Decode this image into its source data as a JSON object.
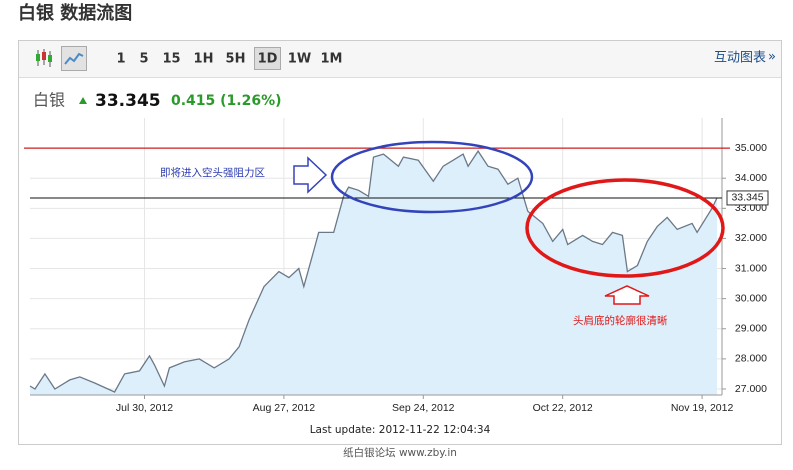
{
  "header": {
    "title": "白银 数据流图"
  },
  "toolbar": {
    "buttons": [
      "1",
      "5",
      "15",
      "1H",
      "5H",
      "1D",
      "1W",
      "1M"
    ],
    "active_index": 5,
    "link": "互动图表",
    "link_arrow": "»"
  },
  "quote": {
    "name": "白银",
    "price": 33.345,
    "change": "0.415 (1.26%)"
  },
  "chart_data": {
    "type": "area",
    "color": "#6b7887",
    "fill": "#ddeffb",
    "x": [
      "2012-07-07",
      "2012-07-08",
      "2012-07-10",
      "2012-07-12",
      "2012-07-15",
      "2012-07-17",
      "2012-07-20",
      "2012-07-24",
      "2012-07-26",
      "2012-07-29",
      "2012-07-31",
      "2012-08-01",
      "2012-08-03",
      "2012-08-04",
      "2012-08-07",
      "2012-08-10",
      "2012-08-13",
      "2012-08-16",
      "2012-08-18",
      "2012-08-20",
      "2012-08-23",
      "2012-08-26",
      "2012-08-28",
      "2012-08-30",
      "2012-08-31",
      "2012-09-02",
      "2012-09-03",
      "2012-09-06",
      "2012-09-08",
      "2012-09-09",
      "2012-09-11",
      "2012-09-13",
      "2012-09-14",
      "2012-09-16",
      "2012-09-19",
      "2012-09-20",
      "2012-09-23",
      "2012-09-26",
      "2012-09-28",
      "2012-09-30",
      "2012-10-02",
      "2012-10-03",
      "2012-10-05",
      "2012-10-07",
      "2012-10-09",
      "2012-10-11",
      "2012-10-13",
      "2012-10-15",
      "2012-10-18",
      "2012-10-20",
      "2012-10-22",
      "2012-10-23",
      "2012-10-26",
      "2012-10-28",
      "2012-10-30",
      "2012-11-01",
      "2012-11-03",
      "2012-11-04",
      "2012-11-06",
      "2012-11-08",
      "2012-11-10",
      "2012-11-12",
      "2012-11-14",
      "2012-11-17",
      "2012-11-18",
      "2012-11-21",
      "2012-11-22"
    ],
    "values": [
      27.1,
      27.0,
      27.5,
      27.0,
      27.3,
      27.4,
      27.2,
      26.9,
      27.5,
      27.6,
      28.1,
      27.8,
      27.1,
      27.7,
      27.9,
      28.0,
      27.7,
      28.0,
      28.4,
      29.3,
      30.4,
      30.9,
      30.7,
      31.0,
      30.4,
      31.6,
      32.2,
      32.2,
      33.4,
      33.7,
      33.6,
      33.4,
      34.7,
      34.8,
      34.4,
      34.7,
      34.6,
      33.9,
      34.4,
      34.6,
      34.8,
      34.4,
      34.9,
      34.4,
      34.3,
      33.8,
      34.0,
      32.9,
      32.5,
      31.9,
      32.3,
      31.8,
      32.1,
      31.9,
      31.8,
      32.2,
      32.1,
      30.9,
      31.1,
      31.9,
      32.4,
      32.7,
      32.3,
      32.5,
      32.2,
      33.0,
      33.345
    ],
    "xlim": [
      "2012-07-07",
      "2012-11-23"
    ],
    "xticks": [
      {
        "value": "2012-07-30",
        "label": "Jul 30, 2012"
      },
      {
        "value": "2012-08-27",
        "label": "Aug 27, 2012"
      },
      {
        "value": "2012-09-24",
        "label": "Sep 24, 2012"
      },
      {
        "value": "2012-10-22",
        "label": "Oct 22, 2012"
      },
      {
        "value": "2012-11-19",
        "label": "Nov 19, 2012"
      }
    ],
    "ylim": [
      26.8,
      36
    ],
    "yticks": [
      {
        "value": 27,
        "label": "27.000"
      },
      {
        "value": 28,
        "label": "28.000"
      },
      {
        "value": 29,
        "label": "29.000"
      },
      {
        "value": 30,
        "label": "30.000"
      },
      {
        "value": 31,
        "label": "31.000"
      },
      {
        "value": 32,
        "label": "32.000"
      },
      {
        "value": 33,
        "label": "33.000"
      },
      {
        "value": 34,
        "label": "34.000"
      },
      {
        "value": 35,
        "label": "35.000"
      }
    ],
    "grid": true,
    "reference_line": {
      "value": 35,
      "color": "#d02020"
    },
    "annotations": [
      "即将进入空头强阻力区",
      "头肩底的轮廓很清晰"
    ]
  },
  "footer": {
    "update": "Last update: 2012-11-22 12:04:34",
    "watermark": "纸白银论坛 www.zby.in"
  }
}
